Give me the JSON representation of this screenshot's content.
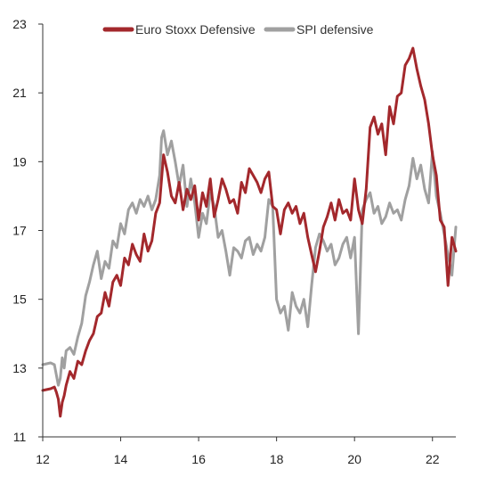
{
  "chart_data": {
    "type": "line",
    "title": "",
    "xlabel": "",
    "ylabel": "",
    "xlim": [
      12,
      22.6
    ],
    "ylim": [
      11,
      23
    ],
    "x_ticks": [
      12,
      14,
      16,
      18,
      20,
      22
    ],
    "x_tick_labels": [
      "12",
      "14",
      "16",
      "18",
      "20",
      "22"
    ],
    "y_ticks": [
      11,
      13,
      15,
      17,
      19,
      21,
      23
    ],
    "y_tick_labels": [
      "11",
      "13",
      "15",
      "17",
      "19",
      "21",
      "23"
    ],
    "grid": false,
    "legend": "top-center",
    "series": [
      {
        "name": "Euro Stoxx Defensive",
        "color": "#a3282c",
        "x": [
          12.0,
          12.2,
          12.3,
          12.35,
          12.4,
          12.45,
          12.5,
          12.55,
          12.6,
          12.7,
          12.8,
          12.9,
          13.0,
          13.1,
          13.2,
          13.3,
          13.4,
          13.5,
          13.6,
          13.7,
          13.8,
          13.9,
          14.0,
          14.1,
          14.2,
          14.3,
          14.4,
          14.5,
          14.6,
          14.7,
          14.8,
          14.9,
          15.0,
          15.05,
          15.1,
          15.2,
          15.3,
          15.4,
          15.5,
          15.6,
          15.7,
          15.8,
          15.9,
          16.0,
          16.1,
          16.2,
          16.3,
          16.4,
          16.5,
          16.6,
          16.7,
          16.8,
          16.9,
          17.0,
          17.1,
          17.2,
          17.3,
          17.4,
          17.5,
          17.6,
          17.7,
          17.8,
          17.9,
          18.0,
          18.1,
          18.2,
          18.3,
          18.4,
          18.5,
          18.6,
          18.7,
          18.8,
          18.9,
          19.0,
          19.1,
          19.2,
          19.3,
          19.4,
          19.5,
          19.6,
          19.7,
          19.8,
          19.9,
          20.0,
          20.1,
          20.2,
          20.3,
          20.4,
          20.5,
          20.6,
          20.7,
          20.8,
          20.9,
          21.0,
          21.1,
          21.2,
          21.3,
          21.4,
          21.5,
          21.6,
          21.7,
          21.8,
          21.9,
          22.0,
          22.1,
          22.2,
          22.3,
          22.4,
          22.5,
          22.6
        ],
        "values": [
          12.35,
          12.4,
          12.45,
          12.3,
          12.1,
          11.6,
          12.0,
          12.2,
          12.5,
          12.9,
          12.7,
          13.2,
          13.1,
          13.5,
          13.8,
          14.0,
          14.5,
          14.6,
          15.2,
          14.8,
          15.5,
          15.7,
          15.4,
          16.2,
          16.0,
          16.6,
          16.3,
          16.1,
          16.9,
          16.4,
          16.7,
          17.5,
          17.8,
          18.5,
          19.2,
          18.7,
          18.0,
          17.8,
          18.4,
          17.6,
          18.2,
          17.9,
          18.3,
          17.3,
          18.1,
          17.7,
          18.5,
          17.4,
          17.9,
          18.5,
          18.2,
          17.8,
          17.9,
          17.5,
          18.4,
          18.1,
          18.8,
          18.6,
          18.4,
          18.1,
          18.5,
          18.7,
          17.7,
          17.6,
          16.9,
          17.6,
          17.8,
          17.5,
          17.7,
          17.2,
          17.5,
          16.8,
          16.3,
          15.8,
          16.4,
          17.1,
          17.4,
          17.8,
          17.3,
          17.9,
          17.5,
          17.6,
          17.3,
          18.5,
          17.6,
          17.2,
          18.2,
          20.0,
          20.3,
          19.8,
          20.1,
          19.2,
          20.6,
          20.1,
          20.9,
          21.0,
          21.8,
          22.0,
          22.3,
          21.7,
          21.2,
          20.8,
          20.1,
          19.2,
          18.6,
          17.3,
          17.1,
          15.4,
          16.8,
          16.4
        ]
      },
      {
        "name": "SPI defensive",
        "color": "#a0a0a0",
        "x": [
          12.0,
          12.2,
          12.3,
          12.35,
          12.4,
          12.45,
          12.5,
          12.55,
          12.6,
          12.7,
          12.8,
          12.9,
          13.0,
          13.1,
          13.2,
          13.3,
          13.4,
          13.5,
          13.6,
          13.7,
          13.8,
          13.9,
          14.0,
          14.1,
          14.2,
          14.3,
          14.4,
          14.5,
          14.6,
          14.7,
          14.8,
          14.9,
          15.0,
          15.05,
          15.1,
          15.2,
          15.3,
          15.4,
          15.5,
          15.6,
          15.7,
          15.8,
          15.9,
          16.0,
          16.1,
          16.2,
          16.3,
          16.4,
          16.5,
          16.6,
          16.7,
          16.8,
          16.9,
          17.0,
          17.1,
          17.2,
          17.3,
          17.4,
          17.5,
          17.6,
          17.7,
          17.8,
          17.9,
          18.0,
          18.1,
          18.2,
          18.3,
          18.4,
          18.5,
          18.6,
          18.7,
          18.8,
          18.9,
          19.0,
          19.1,
          19.2,
          19.3,
          19.4,
          19.5,
          19.6,
          19.7,
          19.8,
          19.9,
          20.0,
          20.1,
          20.2,
          20.3,
          20.4,
          20.5,
          20.6,
          20.7,
          20.8,
          20.9,
          21.0,
          21.1,
          21.2,
          21.3,
          21.4,
          21.5,
          21.6,
          21.7,
          21.8,
          21.9,
          22.0,
          22.1,
          22.2,
          22.3,
          22.4,
          22.5,
          22.6
        ],
        "values": [
          13.1,
          13.15,
          13.1,
          12.8,
          12.5,
          12.7,
          13.3,
          13.0,
          13.5,
          13.6,
          13.4,
          13.9,
          14.3,
          15.1,
          15.5,
          16.0,
          16.4,
          15.6,
          16.1,
          15.9,
          16.7,
          16.5,
          17.2,
          16.9,
          17.6,
          17.8,
          17.5,
          17.9,
          17.7,
          18.0,
          17.6,
          17.9,
          18.6,
          19.7,
          19.9,
          19.2,
          19.6,
          19.0,
          18.3,
          18.9,
          17.7,
          18.5,
          17.8,
          16.8,
          17.5,
          17.2,
          18.1,
          17.7,
          16.8,
          17.0,
          16.4,
          15.7,
          16.5,
          16.4,
          16.2,
          16.7,
          16.8,
          16.3,
          16.6,
          16.4,
          16.8,
          17.9,
          17.7,
          15.0,
          14.6,
          14.8,
          14.1,
          15.2,
          14.8,
          14.6,
          15.0,
          14.2,
          15.4,
          16.5,
          16.9,
          16.7,
          16.4,
          16.6,
          16.0,
          16.2,
          16.6,
          16.8,
          16.2,
          16.8,
          14.0,
          17.6,
          17.9,
          18.1,
          17.5,
          17.7,
          17.2,
          17.4,
          17.8,
          17.5,
          17.6,
          17.3,
          17.9,
          18.3,
          19.1,
          18.5,
          18.9,
          18.2,
          17.8,
          19.3,
          18.0,
          17.5,
          16.9,
          16.3,
          15.7,
          17.1
        ]
      }
    ]
  }
}
